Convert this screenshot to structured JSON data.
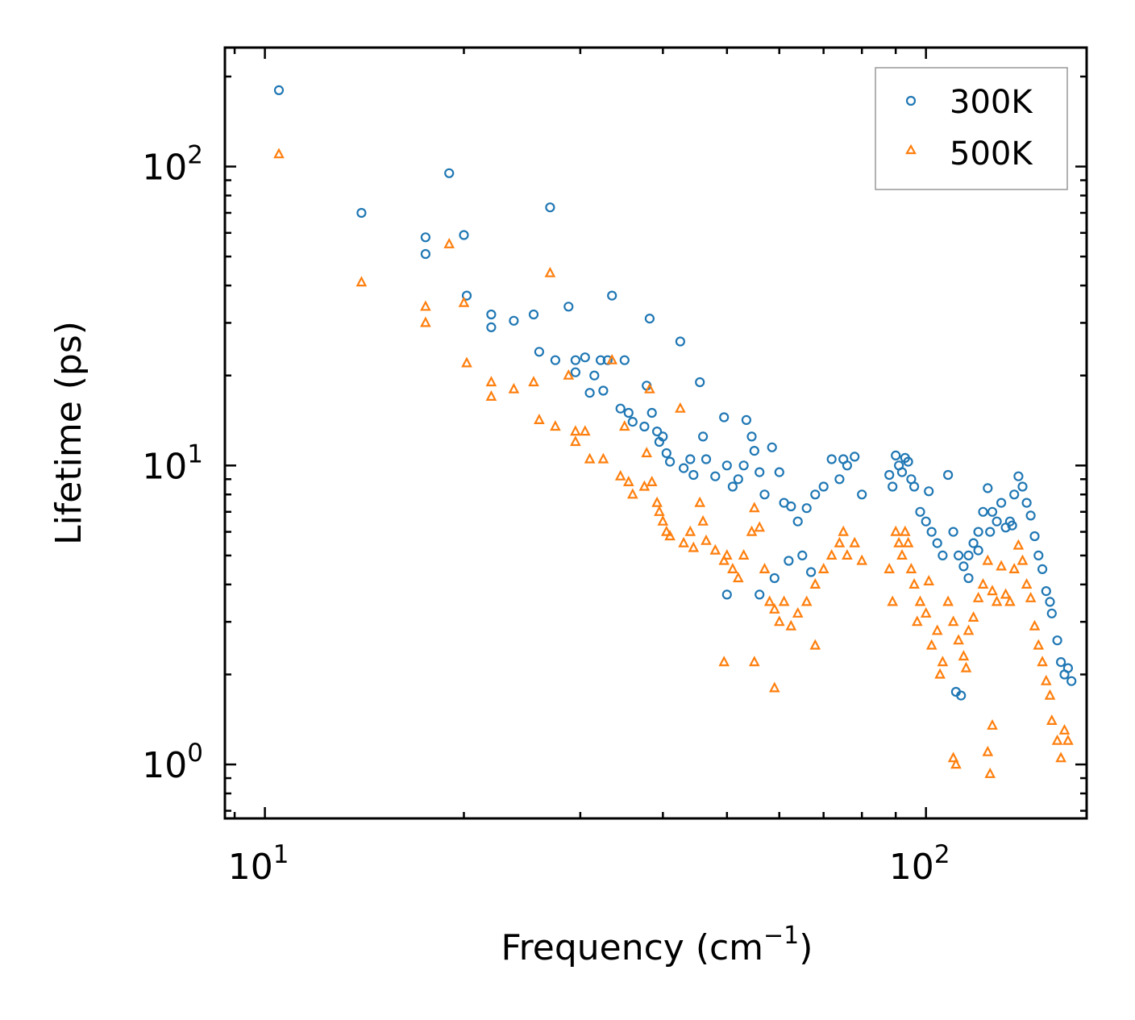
{
  "chart_data": {
    "type": "scatter",
    "title": "",
    "xlabel": "Frequency (cm",
    "xlabel_superscript": "−1",
    "xlabel_suffix": ")",
    "ylabel": "Lifetime (ps)",
    "xscale": "log",
    "yscale": "log",
    "xlim": [
      8.7,
      175
    ],
    "ylim": [
      0.66,
      250
    ],
    "x_tick_labels": [
      {
        "value": 10,
        "base": "10",
        "exp": "1"
      },
      {
        "value": 100,
        "base": "10",
        "exp": "2"
      }
    ],
    "y_tick_labels": [
      {
        "value": 1,
        "base": "10",
        "exp": "0"
      },
      {
        "value": 10,
        "base": "10",
        "exp": "1"
      },
      {
        "value": 100,
        "base": "10",
        "exp": "2"
      }
    ],
    "legend": {
      "position": "top-right",
      "entries": [
        "300K",
        "500K"
      ]
    },
    "colors": {
      "300K": "#1f77b4",
      "500K": "#ff7f0e"
    },
    "series": [
      {
        "name": "300K",
        "marker": "circle",
        "points": [
          [
            10.5,
            180
          ],
          [
            14,
            70
          ],
          [
            17.5,
            58
          ],
          [
            17.5,
            51
          ],
          [
            19,
            95
          ],
          [
            20,
            59
          ],
          [
            20.2,
            37
          ],
          [
            22,
            32
          ],
          [
            22,
            29
          ],
          [
            23.8,
            30.5
          ],
          [
            25.5,
            32
          ],
          [
            26,
            24
          ],
          [
            27,
            73
          ],
          [
            27.5,
            22.5
          ],
          [
            28.8,
            34
          ],
          [
            29.5,
            22.5
          ],
          [
            29.5,
            20.5
          ],
          [
            30.5,
            23
          ],
          [
            31,
            17.5
          ],
          [
            31.5,
            20
          ],
          [
            32.2,
            22.5
          ],
          [
            32.5,
            17.8
          ],
          [
            33,
            22.5
          ],
          [
            33.5,
            37
          ],
          [
            34.5,
            15.5
          ],
          [
            35,
            22.5
          ],
          [
            35.5,
            15
          ],
          [
            36,
            14
          ],
          [
            37.5,
            13.5
          ],
          [
            37.8,
            18.5
          ],
          [
            38.2,
            31
          ],
          [
            38.5,
            15
          ],
          [
            39.2,
            13
          ],
          [
            39.5,
            12
          ],
          [
            40,
            12.5
          ],
          [
            40.5,
            11
          ],
          [
            41,
            10.3
          ],
          [
            42.5,
            26
          ],
          [
            43,
            9.8
          ],
          [
            44,
            10.5
          ],
          [
            44.5,
            9.3
          ],
          [
            45.5,
            19
          ],
          [
            46,
            12.5
          ],
          [
            46.5,
            10.5
          ],
          [
            48,
            9.2
          ],
          [
            49.5,
            14.5
          ],
          [
            50,
            10
          ],
          [
            51,
            8.5
          ],
          [
            52,
            9
          ],
          [
            53,
            10
          ],
          [
            53.5,
            14.2
          ],
          [
            54.5,
            12.5
          ],
          [
            55,
            11.2
          ],
          [
            56,
            9.5
          ],
          [
            57,
            8
          ],
          [
            58.5,
            11.5
          ],
          [
            60,
            9.5
          ],
          [
            61,
            7.5
          ],
          [
            62.5,
            7.3
          ],
          [
            64,
            6.5
          ],
          [
            66,
            7.2
          ],
          [
            68,
            8
          ],
          [
            70,
            8.5
          ],
          [
            72,
            10.5
          ],
          [
            74,
            9
          ],
          [
            75,
            10.5
          ],
          [
            76,
            10
          ],
          [
            78,
            10.7
          ],
          [
            80,
            8
          ],
          [
            88,
            9.3
          ],
          [
            89,
            8.5
          ],
          [
            90,
            10.8
          ],
          [
            91,
            10
          ],
          [
            92,
            9.5
          ],
          [
            93,
            10.6
          ],
          [
            94,
            10.3
          ],
          [
            95,
            9
          ],
          [
            96,
            8.5
          ],
          [
            98,
            7
          ],
          [
            100,
            6.5
          ],
          [
            102,
            6
          ],
          [
            104,
            5.5
          ],
          [
            106,
            5
          ],
          [
            108,
            9.3
          ],
          [
            110,
            6
          ],
          [
            112,
            5
          ],
          [
            114,
            4.6
          ],
          [
            116,
            5
          ],
          [
            118,
            5.5
          ],
          [
            120,
            6
          ],
          [
            122,
            7
          ],
          [
            124,
            8.4
          ],
          [
            126,
            7
          ],
          [
            128,
            6.5
          ],
          [
            130,
            7.5
          ],
          [
            132,
            6.2
          ],
          [
            134,
            6.5
          ],
          [
            136,
            8
          ],
          [
            138,
            9.2
          ],
          [
            140,
            8.5
          ],
          [
            142,
            7.5
          ],
          [
            144,
            6.8
          ],
          [
            146,
            5.8
          ],
          [
            148,
            5
          ],
          [
            150,
            4.5
          ],
          [
            152,
            3.8
          ],
          [
            154,
            3.5
          ],
          [
            155,
            3.2
          ],
          [
            158,
            2.6
          ],
          [
            160,
            2.2
          ],
          [
            162,
            2
          ],
          [
            164,
            2.1
          ],
          [
            166,
            1.9
          ],
          [
            111,
            1.75
          ],
          [
            113,
            1.7
          ],
          [
            120,
            5.2
          ],
          [
            116,
            4.2
          ],
          [
            125,
            6
          ],
          [
            135,
            6.3
          ],
          [
            101,
            8.2
          ],
          [
            50,
            3.7
          ],
          [
            56,
            3.7
          ],
          [
            59,
            4.2
          ],
          [
            62,
            4.8
          ],
          [
            65,
            5
          ],
          [
            67,
            4.4
          ]
        ]
      },
      {
        "name": "500K",
        "marker": "triangle",
        "points": [
          [
            10.5,
            110
          ],
          [
            14,
            41
          ],
          [
            17.5,
            34
          ],
          [
            17.5,
            30
          ],
          [
            19,
            55
          ],
          [
            20,
            35
          ],
          [
            20.2,
            22
          ],
          [
            22,
            19
          ],
          [
            22,
            17
          ],
          [
            23.8,
            18
          ],
          [
            25.5,
            19
          ],
          [
            26,
            14.2
          ],
          [
            27,
            44
          ],
          [
            27.5,
            13.5
          ],
          [
            28.8,
            20
          ],
          [
            29.5,
            13
          ],
          [
            29.5,
            12
          ],
          [
            30.5,
            13
          ],
          [
            31,
            10.5
          ],
          [
            32.5,
            10.5
          ],
          [
            33.5,
            22.5
          ],
          [
            34.5,
            9.2
          ],
          [
            35,
            13.5
          ],
          [
            35.5,
            8.8
          ],
          [
            36,
            8
          ],
          [
            37.5,
            8.5
          ],
          [
            37.8,
            11
          ],
          [
            38.2,
            18
          ],
          [
            38.5,
            8.8
          ],
          [
            39.2,
            7.5
          ],
          [
            39.5,
            7
          ],
          [
            40,
            6.5
          ],
          [
            40.5,
            6
          ],
          [
            41,
            5.8
          ],
          [
            42.5,
            15.5
          ],
          [
            43,
            5.5
          ],
          [
            44,
            6
          ],
          [
            44.5,
            5.3
          ],
          [
            45.5,
            7.5
          ],
          [
            46,
            6.5
          ],
          [
            46.5,
            5.6
          ],
          [
            48,
            5.2
          ],
          [
            49.5,
            4.8
          ],
          [
            50,
            5
          ],
          [
            51,
            4.5
          ],
          [
            52,
            4.2
          ],
          [
            53,
            5
          ],
          [
            54.5,
            6
          ],
          [
            55,
            7.2
          ],
          [
            56,
            6.2
          ],
          [
            57,
            4.5
          ],
          [
            58,
            3.5
          ],
          [
            59,
            3.3
          ],
          [
            60,
            3
          ],
          [
            61,
            3.5
          ],
          [
            62.5,
            2.9
          ],
          [
            64,
            3.2
          ],
          [
            66,
            3.5
          ],
          [
            68,
            4
          ],
          [
            70,
            4.5
          ],
          [
            72,
            5
          ],
          [
            74,
            5.5
          ],
          [
            75,
            6
          ],
          [
            76,
            5
          ],
          [
            78,
            5.5
          ],
          [
            80,
            4.8
          ],
          [
            49.5,
            2.2
          ],
          [
            55,
            2.2
          ],
          [
            59,
            1.8
          ],
          [
            68,
            2.5
          ],
          [
            88,
            4.5
          ],
          [
            89,
            3.5
          ],
          [
            90,
            6
          ],
          [
            91,
            5.5
          ],
          [
            92,
            5
          ],
          [
            93,
            6
          ],
          [
            94,
            5.5
          ],
          [
            95,
            4.5
          ],
          [
            96,
            4
          ],
          [
            98,
            3.5
          ],
          [
            100,
            3.2
          ],
          [
            102,
            2.5
          ],
          [
            104,
            2.8
          ],
          [
            106,
            2.2
          ],
          [
            108,
            3.5
          ],
          [
            110,
            3
          ],
          [
            112,
            2.6
          ],
          [
            114,
            2.3
          ],
          [
            116,
            2.8
          ],
          [
            118,
            3.1
          ],
          [
            120,
            3.6
          ],
          [
            122,
            4
          ],
          [
            124,
            4.8
          ],
          [
            126,
            3.8
          ],
          [
            128,
            3.5
          ],
          [
            130,
            4.6
          ],
          [
            132,
            3.7
          ],
          [
            134,
            3.5
          ],
          [
            136,
            4.5
          ],
          [
            138,
            5.4
          ],
          [
            140,
            4.8
          ],
          [
            142,
            4
          ],
          [
            144,
            3.6
          ],
          [
            146,
            2.9
          ],
          [
            148,
            2.5
          ],
          [
            150,
            2.2
          ],
          [
            152,
            1.9
          ],
          [
            154,
            1.7
          ],
          [
            155,
            1.4
          ],
          [
            158,
            1.2
          ],
          [
            160,
            1.05
          ],
          [
            162,
            1.3
          ],
          [
            164,
            1.2
          ],
          [
            110,
            1.05
          ],
          [
            111,
            1
          ],
          [
            125,
            0.93
          ],
          [
            124,
            1.1
          ],
          [
            126,
            1.35
          ],
          [
            105,
            2
          ],
          [
            115,
            2.1
          ],
          [
            101,
            4.1
          ],
          [
            97,
            3
          ]
        ]
      }
    ]
  }
}
